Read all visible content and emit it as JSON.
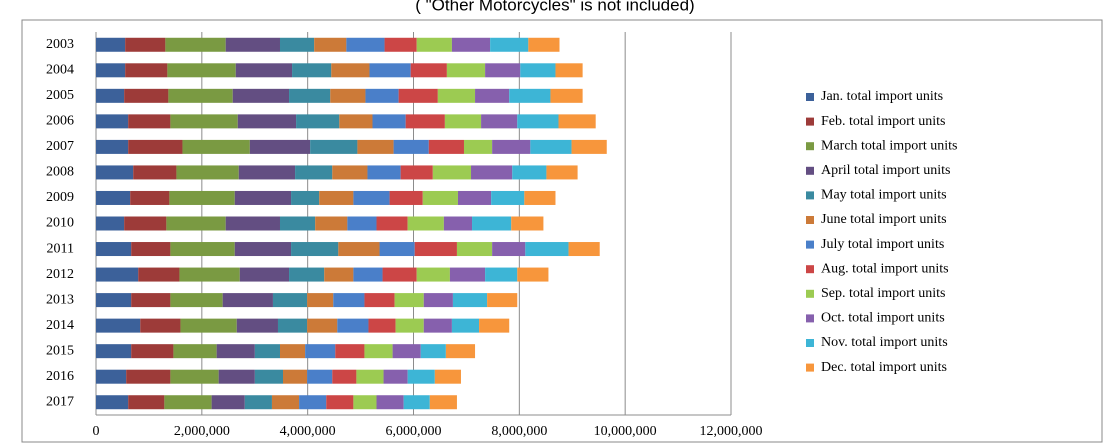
{
  "chart_data": {
    "type": "stacked-barh",
    "title": "( \"Other Motorcycles\" is not included)",
    "categories": [
      "2003",
      "2004",
      "2005",
      "2006",
      "2007",
      "2008",
      "2009",
      "2010",
      "2011",
      "2012",
      "2013",
      "2014",
      "2015",
      "2016",
      "2017"
    ],
    "series": [
      {
        "name": "Jan. total import units",
        "color": "#3c619a",
        "values": [
          551000,
          551000,
          532000,
          608000,
          608000,
          703000,
          646000,
          532000,
          665000,
          798000,
          665000,
          836000,
          665000,
          570000,
          608000
        ]
      },
      {
        "name": "Feb. total import units",
        "color": "#9d3b39",
        "values": [
          760000,
          798000,
          836000,
          798000,
          1026000,
          817000,
          741000,
          798000,
          741000,
          779000,
          741000,
          760000,
          798000,
          836000,
          684000
        ]
      },
      {
        "name": "March total import units",
        "color": "#7a9a42",
        "values": [
          1140000,
          1292000,
          1216000,
          1273000,
          1273000,
          1178000,
          1235000,
          1121000,
          1216000,
          1140000,
          988000,
          1064000,
          817000,
          912000,
          893000
        ]
      },
      {
        "name": "April total import units",
        "color": "#634e82",
        "values": [
          1026000,
          1064000,
          1064000,
          1102000,
          1140000,
          1064000,
          1064000,
          1026000,
          1064000,
          931000,
          950000,
          779000,
          722000,
          684000,
          627000
        ]
      },
      {
        "name": "May total import units",
        "color": "#3a8aa0",
        "values": [
          646000,
          741000,
          779000,
          817000,
          893000,
          703000,
          532000,
          665000,
          893000,
          665000,
          646000,
          551000,
          475000,
          532000,
          513000
        ]
      },
      {
        "name": "June total import units",
        "color": "#cc7a38",
        "values": [
          608000,
          722000,
          665000,
          627000,
          684000,
          665000,
          646000,
          608000,
          779000,
          551000,
          494000,
          570000,
          475000,
          456000,
          513000
        ]
      },
      {
        "name": "July total import units",
        "color": "#4a7fc9",
        "values": [
          722000,
          779000,
          627000,
          627000,
          665000,
          627000,
          684000,
          551000,
          665000,
          551000,
          589000,
          589000,
          570000,
          475000,
          513000
        ]
      },
      {
        "name": "Aug. total import units",
        "color": "#cc4646",
        "values": [
          608000,
          684000,
          741000,
          741000,
          665000,
          608000,
          627000,
          589000,
          798000,
          646000,
          570000,
          513000,
          551000,
          456000,
          513000
        ]
      },
      {
        "name": "Sep. total import units",
        "color": "#9ccb52",
        "values": [
          665000,
          722000,
          703000,
          684000,
          532000,
          722000,
          665000,
          684000,
          665000,
          627000,
          551000,
          532000,
          532000,
          513000,
          437000
        ]
      },
      {
        "name": "Oct. total import units",
        "color": "#8660ad",
        "values": [
          722000,
          665000,
          646000,
          684000,
          722000,
          779000,
          627000,
          532000,
          627000,
          665000,
          551000,
          532000,
          532000,
          456000,
          513000
        ]
      },
      {
        "name": "Nov. total import units",
        "color": "#3db5d6",
        "values": [
          722000,
          665000,
          779000,
          779000,
          779000,
          646000,
          627000,
          741000,
          817000,
          608000,
          646000,
          513000,
          475000,
          513000,
          494000
        ]
      },
      {
        "name": "Dec. total import units",
        "color": "#f7963c",
        "values": [
          589000,
          513000,
          608000,
          703000,
          665000,
          589000,
          589000,
          608000,
          589000,
          589000,
          570000,
          570000,
          551000,
          494000,
          513000
        ]
      }
    ],
    "xlim": [
      0,
      12000000
    ],
    "xticks": [
      0,
      {
        "value": 2000000,
        "label": "2,000,000"
      },
      {
        "value": 4000000,
        "label": "4,000,000"
      },
      {
        "value": 6000000,
        "label": "6,000,000"
      },
      {
        "value": 8000000,
        "label": "8,000,000"
      },
      {
        "value": 10000000,
        "label": "10,000,000"
      },
      {
        "value": 12000000,
        "label": "12,000,000"
      }
    ],
    "grid": true,
    "legend": "right"
  }
}
